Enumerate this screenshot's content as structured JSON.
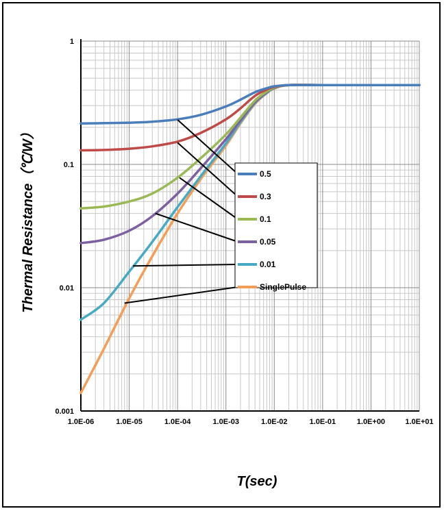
{
  "chart_data": {
    "type": "line",
    "title": "",
    "xlabel": "T(sec)",
    "ylabel": "Thermal Resistance（℃/W）",
    "x_scale": "log",
    "y_scale": "log",
    "xlim": [
      1e-06,
      10
    ],
    "ylim": [
      0.001,
      1
    ],
    "grid": true,
    "legend_position": "center-right",
    "x_ticks": [
      {
        "value": 1e-06,
        "label": "1.0E-06"
      },
      {
        "value": 1e-05,
        "label": "1.0E-05"
      },
      {
        "value": 0.0001,
        "label": "1.0E-04"
      },
      {
        "value": 0.001,
        "label": "1.0E-03"
      },
      {
        "value": 0.01,
        "label": "1.0E-02"
      },
      {
        "value": 0.1,
        "label": "1.0E-01"
      },
      {
        "value": 1,
        "label": "1.0E+00"
      },
      {
        "value": 10,
        "label": "1.0E+01"
      }
    ],
    "y_ticks": [
      {
        "value": 0.001,
        "label": "0.001"
      },
      {
        "value": 0.01,
        "label": "0.01"
      },
      {
        "value": 0.1,
        "label": "0.1"
      },
      {
        "value": 1,
        "label": "1"
      }
    ],
    "x": [
      1e-06,
      3e-06,
      1e-05,
      3e-05,
      0.0001,
      0.0003,
      0.001,
      0.002,
      0.004,
      0.007,
      0.01,
      0.02,
      0.1,
      1,
      10
    ],
    "series": [
      {
        "name": "0.5",
        "color": "#4A7EBB",
        "values": [
          0.215,
          0.216,
          0.218,
          0.222,
          0.232,
          0.252,
          0.295,
          0.335,
          0.385,
          0.415,
          0.43,
          0.44,
          0.44,
          0.44,
          0.44
        ]
      },
      {
        "name": "0.3",
        "color": "#BE4B48",
        "values": [
          0.13,
          0.131,
          0.134,
          0.14,
          0.153,
          0.18,
          0.232,
          0.285,
          0.36,
          0.405,
          0.425,
          0.44,
          0.44,
          0.44,
          0.44
        ]
      },
      {
        "name": "0.1",
        "color": "#98B954",
        "values": [
          0.044,
          0.0455,
          0.05,
          0.058,
          0.078,
          0.112,
          0.175,
          0.24,
          0.33,
          0.39,
          0.42,
          0.44,
          0.44,
          0.44,
          0.44
        ]
      },
      {
        "name": "0.05",
        "color": "#7D60A0",
        "values": [
          0.023,
          0.0245,
          0.029,
          0.038,
          0.058,
          0.093,
          0.16,
          0.228,
          0.32,
          0.385,
          0.418,
          0.44,
          0.44,
          0.44,
          0.44
        ]
      },
      {
        "name": "0.01",
        "color": "#46AAC5",
        "values": [
          0.0055,
          0.0075,
          0.0135,
          0.0235,
          0.045,
          0.08,
          0.148,
          0.22,
          0.315,
          0.38,
          0.415,
          0.44,
          0.44,
          0.44,
          0.44
        ]
      },
      {
        "name": "SinglePulse",
        "color": "#F59D56",
        "values": [
          0.0014,
          0.0032,
          0.0082,
          0.018,
          0.04,
          0.076,
          0.142,
          0.215,
          0.31,
          0.378,
          0.412,
          0.44,
          0.44,
          0.44,
          0.44
        ]
      }
    ],
    "annotations": [
      {
        "series": "0.5",
        "from": [
          0.0001,
          0.23
        ],
        "to_legend": 0
      },
      {
        "series": "0.3",
        "from": [
          0.0001,
          0.15
        ],
        "to_legend": 1
      },
      {
        "series": "0.1",
        "from": [
          0.00011,
          0.078
        ],
        "to_legend": 2
      },
      {
        "series": "0.05",
        "from": [
          3.5e-05,
          0.04
        ],
        "to_legend": 3
      },
      {
        "series": "0.01",
        "from": [
          1.2e-05,
          0.015
        ],
        "to_legend": 4
      },
      {
        "series": "SinglePulse",
        "from": [
          8e-06,
          0.0075
        ],
        "to_legend": 5
      }
    ]
  }
}
